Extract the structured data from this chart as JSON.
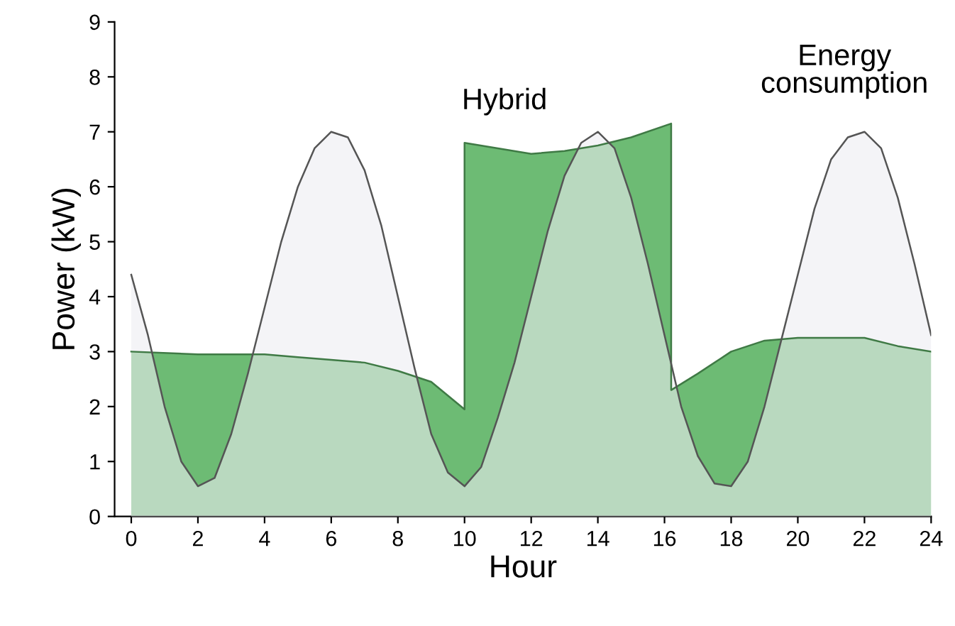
{
  "chart_data": {
    "type": "area",
    "xlabel": "Hour",
    "ylabel": "Power (kW)",
    "xlim": [
      -0.5,
      24
    ],
    "xticks": [
      0,
      2,
      4,
      6,
      8,
      10,
      12,
      14,
      16,
      18,
      20,
      22,
      24
    ],
    "ylim": [
      0,
      9
    ],
    "yticks": [
      0,
      1,
      2,
      3,
      4,
      5,
      6,
      7,
      8,
      9
    ],
    "grid": false,
    "legend": false,
    "series": [
      {
        "name": "Hybrid",
        "color": "#6dbb74",
        "x": [
          0,
          2,
          4,
          5,
          6,
          7,
          8,
          9,
          10,
          10,
          11,
          12,
          13,
          14,
          15,
          16.2,
          16.2,
          17,
          18,
          19,
          20,
          22,
          23,
          24
        ],
        "values": [
          3.0,
          2.95,
          2.95,
          2.9,
          2.85,
          2.8,
          2.65,
          2.45,
          1.95,
          6.8,
          6.7,
          6.6,
          6.65,
          6.75,
          6.9,
          7.15,
          2.3,
          2.6,
          3.0,
          3.2,
          3.25,
          3.25,
          3.1,
          3.0
        ]
      },
      {
        "name": "Energy consumption",
        "color": "#ededf2",
        "x": [
          0,
          0.5,
          1,
          1.5,
          2,
          2.5,
          3,
          3.5,
          4,
          4.5,
          5,
          5.5,
          6,
          6.5,
          7,
          7.5,
          8,
          8.5,
          9,
          9.5,
          10,
          10.5,
          11,
          11.5,
          12,
          12.5,
          13,
          13.5,
          14,
          14.5,
          15,
          15.5,
          16,
          16.5,
          17,
          17.5,
          18,
          18.5,
          19,
          19.5,
          20,
          20.5,
          21,
          21.5,
          22,
          22.5,
          23,
          23.5,
          24
        ],
        "values": [
          4.4,
          3.3,
          2.0,
          1.0,
          0.55,
          0.7,
          1.5,
          2.6,
          3.8,
          5.0,
          6.0,
          6.7,
          7.0,
          6.9,
          6.3,
          5.3,
          4.0,
          2.7,
          1.5,
          0.8,
          0.55,
          0.9,
          1.8,
          2.8,
          4.0,
          5.2,
          6.2,
          6.8,
          7.0,
          6.7,
          5.8,
          4.6,
          3.3,
          2.0,
          1.1,
          0.6,
          0.55,
          1.0,
          2.0,
          3.2,
          4.4,
          5.6,
          6.5,
          6.9,
          7.0,
          6.7,
          5.8,
          4.6,
          3.3
        ]
      }
    ]
  }
}
